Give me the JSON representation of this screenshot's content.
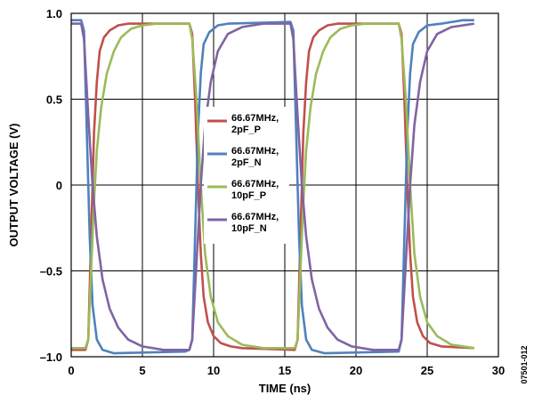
{
  "chart_data": {
    "type": "line",
    "xlabel": "TIME (ns)",
    "ylabel": "OUTPUT VOLTAGE (V)",
    "figure_id": "07501-012",
    "xlim": [
      0,
      30
    ],
    "ylim": [
      -1.0,
      1.0
    ],
    "x_ticks": [
      "0",
      "5",
      "10",
      "15",
      "20",
      "25",
      "30"
    ],
    "y_ticks": [
      "1.0",
      "0.5",
      "0",
      "–0.5",
      "–1.0"
    ],
    "grid": true,
    "legend_position": "center",
    "series": [
      {
        "name": "66.67MHz, 2pF_P",
        "legend_lines": [
          "66.67MHz,",
          "2pF_P"
        ],
        "color": "#c0504d",
        "points": [
          [
            0,
            -0.96
          ],
          [
            1.0,
            -0.96
          ],
          [
            1.2,
            -0.9
          ],
          [
            1.4,
            -0.3
          ],
          [
            1.6,
            0.3
          ],
          [
            1.8,
            0.6
          ],
          [
            2.0,
            0.78
          ],
          [
            2.3,
            0.86
          ],
          [
            2.7,
            0.9
          ],
          [
            3.3,
            0.93
          ],
          [
            4.0,
            0.94
          ],
          [
            5.0,
            0.94
          ],
          [
            8.3,
            0.94
          ],
          [
            8.5,
            0.88
          ],
          [
            8.7,
            0.5
          ],
          [
            8.9,
            0.0
          ],
          [
            9.1,
            -0.4
          ],
          [
            9.3,
            -0.65
          ],
          [
            9.6,
            -0.8
          ],
          [
            10.0,
            -0.88
          ],
          [
            10.5,
            -0.92
          ],
          [
            11.2,
            -0.94
          ],
          [
            12.0,
            -0.95
          ],
          [
            15.7,
            -0.96
          ],
          [
            15.9,
            -0.9
          ],
          [
            16.1,
            -0.3
          ],
          [
            16.3,
            0.3
          ],
          [
            16.5,
            0.6
          ],
          [
            16.7,
            0.78
          ],
          [
            17.0,
            0.86
          ],
          [
            17.4,
            0.9
          ],
          [
            18.0,
            0.93
          ],
          [
            18.7,
            0.94
          ],
          [
            19.7,
            0.94
          ],
          [
            23.0,
            0.94
          ],
          [
            23.2,
            0.88
          ],
          [
            23.4,
            0.5
          ],
          [
            23.6,
            0.0
          ],
          [
            23.8,
            -0.4
          ],
          [
            24.0,
            -0.65
          ],
          [
            24.3,
            -0.8
          ],
          [
            24.7,
            -0.88
          ],
          [
            25.2,
            -0.92
          ],
          [
            26.0,
            -0.94
          ],
          [
            28.3,
            -0.95
          ]
        ]
      },
      {
        "name": "66.67MHz, 2pF_N",
        "legend_lines": [
          "66.67MHz,",
          "2pF_N"
        ],
        "color": "#4f81bd",
        "points": [
          [
            0,
            0.96
          ],
          [
            0.7,
            0.96
          ],
          [
            0.9,
            0.9
          ],
          [
            1.1,
            0.3
          ],
          [
            1.3,
            -0.3
          ],
          [
            1.5,
            -0.7
          ],
          [
            1.8,
            -0.9
          ],
          [
            2.2,
            -0.96
          ],
          [
            3.0,
            -0.98
          ],
          [
            8.0,
            -0.97
          ],
          [
            8.3,
            -0.96
          ],
          [
            8.5,
            -0.9
          ],
          [
            8.7,
            -0.3
          ],
          [
            8.9,
            0.3
          ],
          [
            9.1,
            0.65
          ],
          [
            9.3,
            0.82
          ],
          [
            9.7,
            0.89
          ],
          [
            10.3,
            0.93
          ],
          [
            11.0,
            0.94
          ],
          [
            15.4,
            0.95
          ],
          [
            15.6,
            0.9
          ],
          [
            15.8,
            0.3
          ],
          [
            16.0,
            -0.3
          ],
          [
            16.2,
            -0.7
          ],
          [
            16.5,
            -0.9
          ],
          [
            16.9,
            -0.96
          ],
          [
            17.8,
            -0.98
          ],
          [
            23.0,
            -0.97
          ],
          [
            23.2,
            -0.9
          ],
          [
            23.4,
            -0.3
          ],
          [
            23.6,
            0.3
          ],
          [
            23.8,
            0.65
          ],
          [
            24.0,
            0.82
          ],
          [
            24.4,
            0.89
          ],
          [
            25.0,
            0.93
          ],
          [
            26.0,
            0.94
          ],
          [
            27.5,
            0.96
          ],
          [
            28.3,
            0.96
          ]
        ]
      },
      {
        "name": "66.67MHz, 10pF_P",
        "legend_lines": [
          "66.67MHz,",
          "10pF_P"
        ],
        "color": "#9bbb59",
        "points": [
          [
            0,
            -0.95
          ],
          [
            1.0,
            -0.95
          ],
          [
            1.2,
            -0.9
          ],
          [
            1.4,
            -0.5
          ],
          [
            1.6,
            -0.1
          ],
          [
            1.8,
            0.2
          ],
          [
            2.1,
            0.45
          ],
          [
            2.5,
            0.65
          ],
          [
            3.0,
            0.78
          ],
          [
            3.5,
            0.86
          ],
          [
            4.2,
            0.91
          ],
          [
            5.0,
            0.93
          ],
          [
            6.0,
            0.94
          ],
          [
            8.3,
            0.94
          ],
          [
            8.5,
            0.85
          ],
          [
            8.8,
            0.5
          ],
          [
            9.1,
            0.0
          ],
          [
            9.4,
            -0.4
          ],
          [
            9.8,
            -0.65
          ],
          [
            10.3,
            -0.8
          ],
          [
            11.0,
            -0.88
          ],
          [
            12.0,
            -0.93
          ],
          [
            13.5,
            -0.95
          ],
          [
            15.7,
            -0.95
          ],
          [
            15.9,
            -0.9
          ],
          [
            16.1,
            -0.5
          ],
          [
            16.3,
            -0.1
          ],
          [
            16.5,
            0.2
          ],
          [
            16.8,
            0.45
          ],
          [
            17.2,
            0.65
          ],
          [
            17.7,
            0.78
          ],
          [
            18.2,
            0.86
          ],
          [
            18.9,
            0.91
          ],
          [
            19.7,
            0.93
          ],
          [
            20.7,
            0.94
          ],
          [
            23.0,
            0.94
          ],
          [
            23.2,
            0.85
          ],
          [
            23.5,
            0.5
          ],
          [
            23.8,
            0.0
          ],
          [
            24.1,
            -0.4
          ],
          [
            24.5,
            -0.65
          ],
          [
            25.0,
            -0.8
          ],
          [
            25.7,
            -0.88
          ],
          [
            26.7,
            -0.93
          ],
          [
            28.3,
            -0.95
          ]
        ]
      },
      {
        "name": "66.67MHz, 10pF_N",
        "legend_lines": [
          "66.67MHz,",
          "10pF_N"
        ],
        "color": "#8064a2",
        "points": [
          [
            0,
            0.94
          ],
          [
            0.7,
            0.94
          ],
          [
            0.9,
            0.85
          ],
          [
            1.2,
            0.4
          ],
          [
            1.5,
            0.0
          ],
          [
            1.8,
            -0.3
          ],
          [
            2.2,
            -0.55
          ],
          [
            2.7,
            -0.72
          ],
          [
            3.3,
            -0.83
          ],
          [
            4.0,
            -0.9
          ],
          [
            5.0,
            -0.94
          ],
          [
            6.5,
            -0.96
          ],
          [
            8.3,
            -0.96
          ],
          [
            8.5,
            -0.9
          ],
          [
            8.8,
            -0.45
          ],
          [
            9.1,
            0.0
          ],
          [
            9.4,
            0.35
          ],
          [
            9.8,
            0.6
          ],
          [
            10.3,
            0.78
          ],
          [
            11.0,
            0.88
          ],
          [
            12.0,
            0.92
          ],
          [
            13.5,
            0.94
          ],
          [
            15.4,
            0.94
          ],
          [
            15.6,
            0.85
          ],
          [
            15.9,
            0.4
          ],
          [
            16.2,
            0.0
          ],
          [
            16.5,
            -0.3
          ],
          [
            16.9,
            -0.55
          ],
          [
            17.4,
            -0.72
          ],
          [
            18.0,
            -0.83
          ],
          [
            18.7,
            -0.9
          ],
          [
            19.7,
            -0.94
          ],
          [
            21.2,
            -0.96
          ],
          [
            23.0,
            -0.96
          ],
          [
            23.2,
            -0.9
          ],
          [
            23.5,
            -0.45
          ],
          [
            23.8,
            0.0
          ],
          [
            24.1,
            0.35
          ],
          [
            24.5,
            0.6
          ],
          [
            25.0,
            0.78
          ],
          [
            25.7,
            0.88
          ],
          [
            26.7,
            0.92
          ],
          [
            28.3,
            0.94
          ]
        ]
      }
    ]
  }
}
